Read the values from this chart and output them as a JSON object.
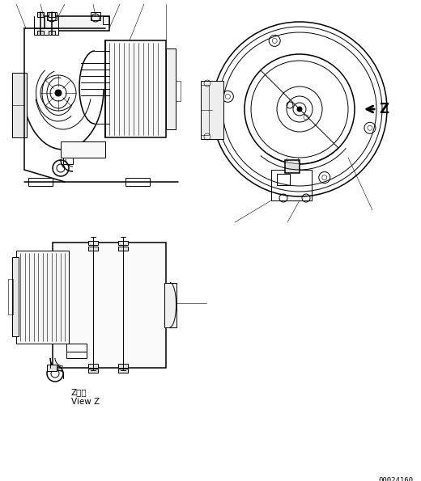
{
  "bg_color": "#ffffff",
  "line_color": "#000000",
  "fig_width": 5.2,
  "fig_height": 5.95,
  "dpi": 100,
  "bottom_code": "00024160",
  "view_z_label_jp": "Z　視",
  "view_z_label_en": "View Z",
  "arrow_z_label": "Z"
}
